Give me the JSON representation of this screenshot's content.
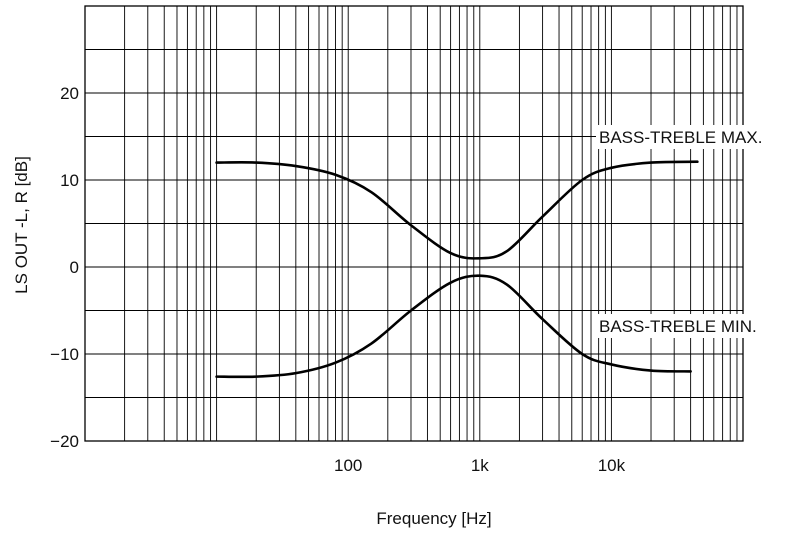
{
  "chart_data": {
    "type": "line",
    "title": "",
    "xlabel": "Frequency [Hz]",
    "ylabel": "LS OUT -L, R [dB]",
    "x_scale": "log",
    "xlim": [
      1,
      100000
    ],
    "ylim": [
      -20,
      30
    ],
    "grid": true,
    "x_ticks": [
      {
        "value": 100,
        "label": "100"
      },
      {
        "value": 1000,
        "label": "1k"
      },
      {
        "value": 10000,
        "label": "10k"
      }
    ],
    "y_ticks": [
      {
        "value": 20,
        "label": "20"
      },
      {
        "value": 10,
        "label": "10"
      },
      {
        "value": 0,
        "label": "0"
      },
      {
        "value": -10,
        "label": "−10"
      },
      {
        "value": -20,
        "label": "−20"
      }
    ],
    "series": [
      {
        "name": "BASS-TREBLE MAX.",
        "x": [
          10,
          20,
          40,
          80,
          150,
          300,
          600,
          1000,
          1600,
          3000,
          6000,
          10000,
          20000,
          45000
        ],
        "y": [
          12.0,
          12.0,
          11.6,
          10.6,
          8.6,
          4.8,
          1.6,
          1.0,
          1.8,
          5.8,
          10.0,
          11.4,
          12.0,
          12.1
        ]
      },
      {
        "name": "BASS-TREBLE MIN.",
        "x": [
          10,
          20,
          40,
          80,
          150,
          300,
          600,
          1000,
          1600,
          3000,
          6000,
          10000,
          20000,
          40000
        ],
        "y": [
          -12.6,
          -12.6,
          -12.2,
          -11.0,
          -8.8,
          -5.0,
          -1.8,
          -1.0,
          -2.0,
          -6.0,
          -10.0,
          -11.2,
          -11.9,
          -12.0
        ]
      }
    ]
  }
}
